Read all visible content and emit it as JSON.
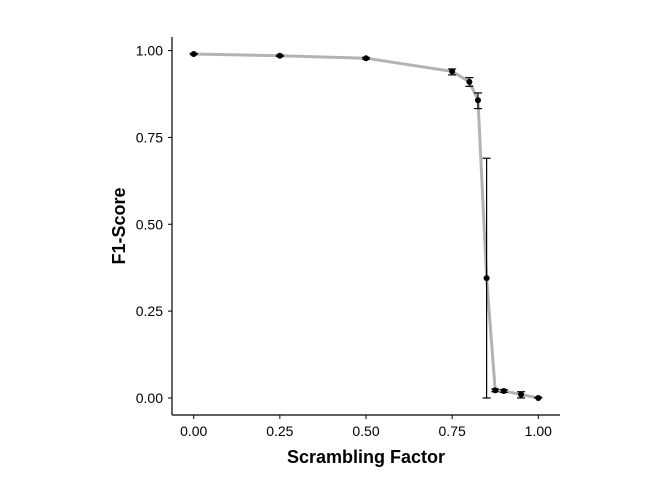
{
  "chart_data": {
    "type": "line",
    "title": "",
    "xlabel": "Scrambling Factor",
    "ylabel": "F1-Score",
    "xlim": [
      -0.063,
      1.063
    ],
    "ylim": [
      -0.049,
      1.039
    ],
    "x_ticks": [
      0.0,
      0.25,
      0.5,
      0.75,
      1.0
    ],
    "x_tick_labels": [
      "0.00",
      "0.25",
      "0.50",
      "0.75",
      "1.00"
    ],
    "y_ticks": [
      0.0,
      0.25,
      0.5,
      0.75,
      1.0
    ],
    "y_tick_labels": [
      "0.00",
      "0.25",
      "0.50",
      "0.75",
      "1.00"
    ],
    "grid": false,
    "legend": "none",
    "line_color": "#b3b3b3",
    "point_color": "#000000",
    "series": [
      {
        "x": [
          0.0,
          0.25,
          0.5,
          0.75,
          0.8,
          0.825,
          0.85,
          0.875,
          0.9,
          0.95,
          1.0
        ],
        "y": [
          0.99,
          0.985,
          0.978,
          0.94,
          0.91,
          0.857,
          0.345,
          0.022,
          0.02,
          0.01,
          0.0
        ],
        "error_low": [
          0.988,
          0.983,
          0.975,
          0.93,
          0.897,
          0.833,
          0.0,
          0.018,
          0.016,
          0.0,
          0.0
        ],
        "error_high": [
          0.992,
          0.987,
          0.98,
          0.947,
          0.922,
          0.878,
          0.69,
          0.026,
          0.024,
          0.018,
          0.002
        ]
      }
    ]
  }
}
